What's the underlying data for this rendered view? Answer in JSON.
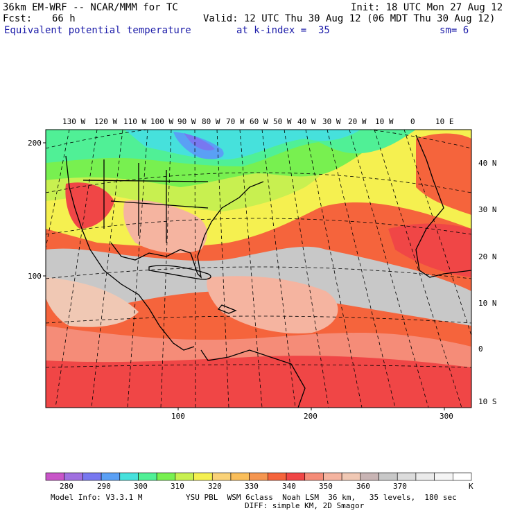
{
  "header": {
    "model": "36km EM-WRF -- NCAR/MMM for TC",
    "init": "Init: 18 UTC Mon 27 Aug 12",
    "fcst_label": "Fcst:",
    "fcst_value": "66 h",
    "valid": "Valid: 12 UTC Thu 30 Aug 12 (06 MDT Thu 30 Aug 12)",
    "field": "Equivalent potential temperature",
    "level": "at k-index =  35",
    "smooth": "sm= 6"
  },
  "map": {
    "lon_labels": [
      "130 W",
      "120 W",
      "110 W",
      "100 W",
      "90 W",
      "80 W",
      "70 W",
      "60 W",
      "50 W",
      "40 W",
      "30 W",
      "20 W",
      "10 W",
      "0",
      "10 E"
    ],
    "lat_labels": [
      "40 N",
      "30 N",
      "20 N",
      "10 N",
      "0",
      "10 S"
    ],
    "left_ticks": [
      "200",
      "100"
    ],
    "bottom_ticks": [
      "100",
      "200",
      "300"
    ]
  },
  "colorbar": {
    "labels": [
      "280",
      "290",
      "300",
      "310",
      "320",
      "330",
      "340",
      "350",
      "360",
      "370"
    ],
    "unit": "K",
    "colors": [
      "#c855c8",
      "#a070e0",
      "#7878f0",
      "#5aa0f5",
      "#46e1dc",
      "#50f096",
      "#78f050",
      "#c8f050",
      "#f5f050",
      "#fad278",
      "#fabe5a",
      "#f59650",
      "#f5643c",
      "#f04646",
      "#f58c78",
      "#f5b4a0",
      "#f0c8b4",
      "#c8b4b4",
      "#c8c8c8",
      "#dcdcdc",
      "#ebebeb",
      "#f5f5f5",
      "#ffffff"
    ]
  },
  "footer": {
    "info": "Model Info: V3.3.1 M",
    "physics1": "YSU PBL  WSM 6class  Noah LSM  36 km,   35 levels,  180 sec",
    "physics2": "DIFF: simple KM, 2D Smagor"
  }
}
